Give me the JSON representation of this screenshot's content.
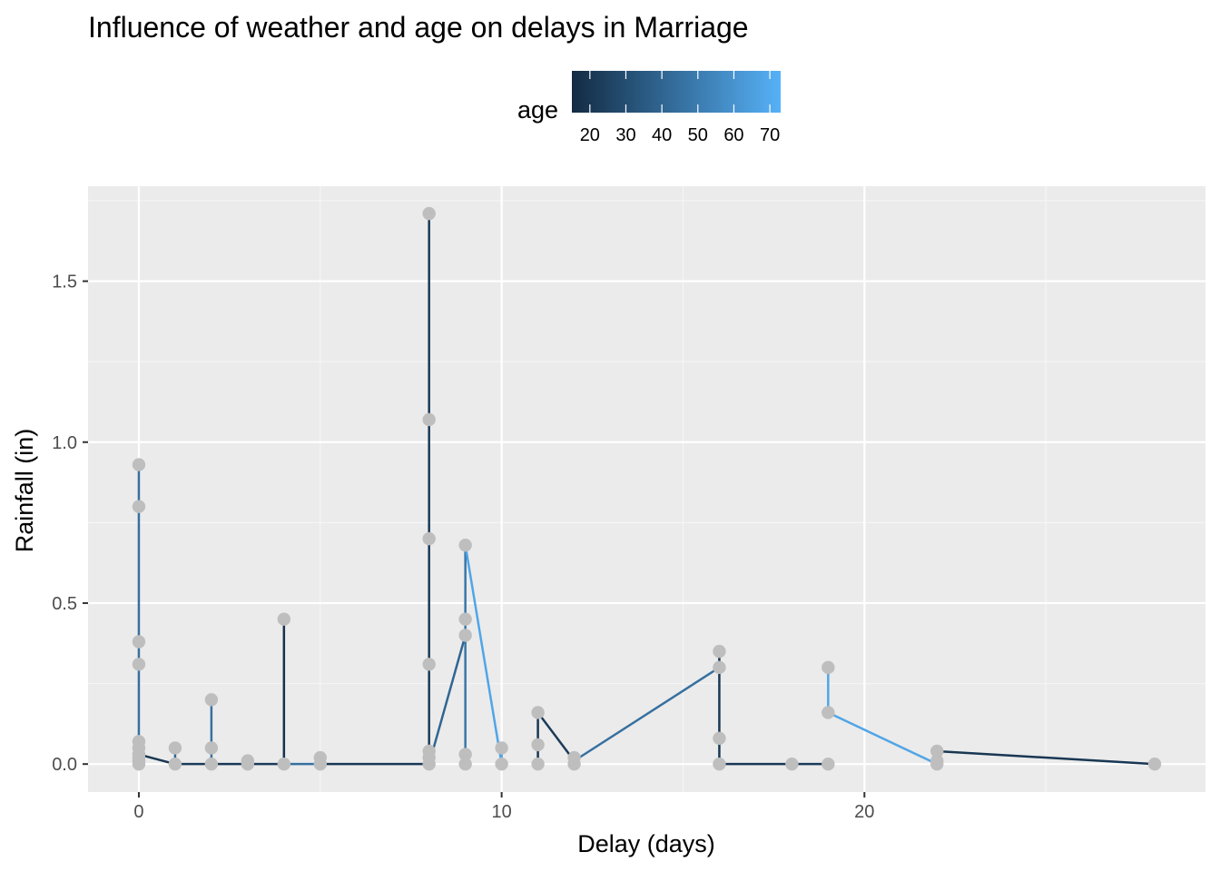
{
  "chart_data": {
    "type": "line",
    "title": "Influence of weather and age on delays in Marriage",
    "xlabel": "Delay (days)",
    "ylabel": "Rainfall (in)",
    "xlim": [
      -1.4,
      29.4
    ],
    "ylim": [
      -0.087,
      1.795
    ],
    "x_ticks": [
      0,
      10,
      20
    ],
    "y_ticks": [
      0.0,
      0.5,
      1.0,
      1.5
    ],
    "x_tick_labels": [
      "0",
      "10",
      "20"
    ],
    "y_tick_labels": [
      "0.0",
      "0.5",
      "1.0",
      "1.5"
    ],
    "grid": true,
    "legend": {
      "title": "age",
      "position": "top",
      "range": [
        15,
        73
      ],
      "ticks": [
        20,
        30,
        40,
        50,
        60,
        70
      ],
      "tick_labels": [
        "20",
        "30",
        "40",
        "50",
        "60",
        "70"
      ],
      "color_low": "#132b43",
      "color_high": "#56b1f7"
    },
    "colors": {
      "panel_background": "#ebebeb",
      "grid_major": "#ffffff",
      "grid_minor": "#f5f5f5",
      "point": "#bebebe"
    },
    "segments": [
      {
        "x": [
          0,
          0
        ],
        "y": [
          0.0,
          0.93
        ],
        "age": 45
      },
      {
        "x": [
          0,
          1
        ],
        "y": [
          0.03,
          0.0
        ],
        "age": 20
      },
      {
        "x": [
          1,
          1
        ],
        "y": [
          0.0,
          0.05
        ],
        "age": 40
      },
      {
        "x": [
          1,
          2
        ],
        "y": [
          0.0,
          0.0
        ],
        "age": 22
      },
      {
        "x": [
          2,
          2
        ],
        "y": [
          0.0,
          0.2
        ],
        "age": 45
      },
      {
        "x": [
          2,
          3
        ],
        "y": [
          0.0,
          0.0
        ],
        "age": 20
      },
      {
        "x": [
          3,
          4
        ],
        "y": [
          0.0,
          0.0
        ],
        "age": 22
      },
      {
        "x": [
          4,
          4
        ],
        "y": [
          0.0,
          0.45
        ],
        "age": 18
      },
      {
        "x": [
          4,
          5
        ],
        "y": [
          0.0,
          0.0
        ],
        "age": 45
      },
      {
        "x": [
          5,
          8
        ],
        "y": [
          0.0,
          0.0
        ],
        "age": 20
      },
      {
        "x": [
          8,
          8
        ],
        "y": [
          0.0,
          1.71
        ],
        "age": 22
      },
      {
        "x": [
          8,
          9
        ],
        "y": [
          0.0,
          0.4
        ],
        "age": 40
      },
      {
        "x": [
          9,
          9
        ],
        "y": [
          0.0,
          0.68
        ],
        "age": 48
      },
      {
        "x": [
          9,
          10
        ],
        "y": [
          0.68,
          0.0
        ],
        "age": 68
      },
      {
        "x": [
          10,
          10
        ],
        "y": [
          0.0,
          0.05
        ],
        "age": 68
      },
      {
        "x": [
          11,
          11
        ],
        "y": [
          0.0,
          0.16
        ],
        "age": 20
      },
      {
        "x": [
          11,
          12
        ],
        "y": [
          0.16,
          0.01
        ],
        "age": 22
      },
      {
        "x": [
          12,
          16
        ],
        "y": [
          0.01,
          0.3
        ],
        "age": 45
      },
      {
        "x": [
          16,
          16
        ],
        "y": [
          0.0,
          0.35
        ],
        "age": 20
      },
      {
        "x": [
          16,
          18
        ],
        "y": [
          0.0,
          0.0
        ],
        "age": 20
      },
      {
        "x": [
          18,
          19
        ],
        "y": [
          0.0,
          0.0
        ],
        "age": 22
      },
      {
        "x": [
          19,
          19
        ],
        "y": [
          0.16,
          0.3
        ],
        "age": 68
      },
      {
        "x": [
          19,
          22
        ],
        "y": [
          0.16,
          0.0
        ],
        "age": 68
      },
      {
        "x": [
          22,
          28
        ],
        "y": [
          0.04,
          0.0
        ],
        "age": 20
      }
    ],
    "points": [
      {
        "x": 0,
        "y": 0.0
      },
      {
        "x": 0,
        "y": 0.01
      },
      {
        "x": 0,
        "y": 0.02
      },
      {
        "x": 0,
        "y": 0.03
      },
      {
        "x": 0,
        "y": 0.05
      },
      {
        "x": 0,
        "y": 0.07
      },
      {
        "x": 0,
        "y": 0.31
      },
      {
        "x": 0,
        "y": 0.38
      },
      {
        "x": 0,
        "y": 0.8
      },
      {
        "x": 0,
        "y": 0.93
      },
      {
        "x": 1,
        "y": 0.0
      },
      {
        "x": 1,
        "y": 0.05
      },
      {
        "x": 2,
        "y": 0.0
      },
      {
        "x": 2,
        "y": 0.05
      },
      {
        "x": 2,
        "y": 0.2
      },
      {
        "x": 3,
        "y": 0.0
      },
      {
        "x": 3,
        "y": 0.01
      },
      {
        "x": 4,
        "y": 0.0
      },
      {
        "x": 4,
        "y": 0.45
      },
      {
        "x": 5,
        "y": 0.0
      },
      {
        "x": 5,
        "y": 0.02
      },
      {
        "x": 8,
        "y": 0.0
      },
      {
        "x": 8,
        "y": 0.02
      },
      {
        "x": 8,
        "y": 0.04
      },
      {
        "x": 8,
        "y": 0.31
      },
      {
        "x": 8,
        "y": 0.7
      },
      {
        "x": 8,
        "y": 1.07
      },
      {
        "x": 8,
        "y": 1.71
      },
      {
        "x": 9,
        "y": 0.0
      },
      {
        "x": 9,
        "y": 0.03
      },
      {
        "x": 9,
        "y": 0.4
      },
      {
        "x": 9,
        "y": 0.45
      },
      {
        "x": 9,
        "y": 0.68
      },
      {
        "x": 10,
        "y": 0.0
      },
      {
        "x": 10,
        "y": 0.05
      },
      {
        "x": 11,
        "y": 0.0
      },
      {
        "x": 11,
        "y": 0.06
      },
      {
        "x": 11,
        "y": 0.16
      },
      {
        "x": 12,
        "y": 0.0
      },
      {
        "x": 12,
        "y": 0.02
      },
      {
        "x": 16,
        "y": 0.0
      },
      {
        "x": 16,
        "y": 0.08
      },
      {
        "x": 16,
        "y": 0.3
      },
      {
        "x": 16,
        "y": 0.35
      },
      {
        "x": 18,
        "y": 0.0
      },
      {
        "x": 19,
        "y": 0.0
      },
      {
        "x": 19,
        "y": 0.16
      },
      {
        "x": 19,
        "y": 0.3
      },
      {
        "x": 22,
        "y": 0.0
      },
      {
        "x": 22,
        "y": 0.01
      },
      {
        "x": 22,
        "y": 0.04
      },
      {
        "x": 28,
        "y": 0.0
      }
    ]
  }
}
